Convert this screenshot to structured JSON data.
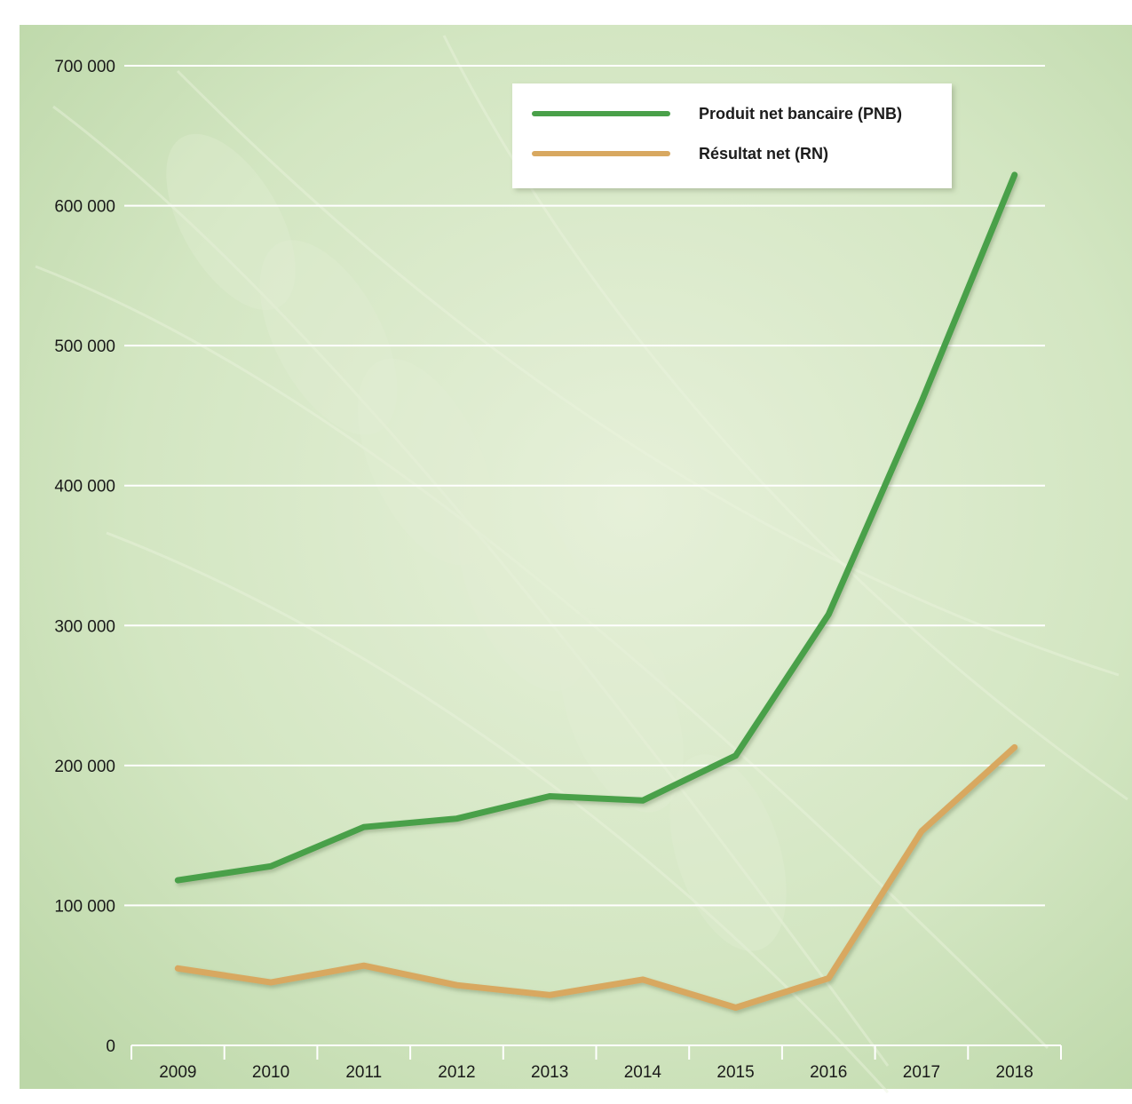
{
  "chart_data": {
    "type": "line",
    "title": "",
    "xlabel": "",
    "ylabel": "",
    "categories": [
      "2009",
      "2010",
      "2011",
      "2012",
      "2013",
      "2014",
      "2015",
      "2016",
      "2017",
      "2018"
    ],
    "series": [
      {
        "name": "Produit net bancaire (PNB)",
        "color": "#4aa04a",
        "values": [
          118000,
          128000,
          156000,
          162000,
          178000,
          175000,
          207000,
          308000,
          460000,
          622000
        ]
      },
      {
        "name": "Résultat net (RN)",
        "color": "#d8a860",
        "values": [
          55000,
          45000,
          57000,
          43000,
          36000,
          47000,
          27000,
          48000,
          153000,
          213000
        ]
      }
    ],
    "ylim": [
      0,
      700000
    ],
    "yticks": [
      "0",
      "100 000",
      "200 000",
      "300 000",
      "400 000",
      "500 000",
      "600 000",
      "700 000"
    ],
    "grid": true,
    "legend_position": "top-right",
    "colors": {
      "background": "#d6e8c6",
      "frame": "#c9dbb8",
      "gridline": "#ffffff",
      "text": "#1a1a1a"
    }
  }
}
